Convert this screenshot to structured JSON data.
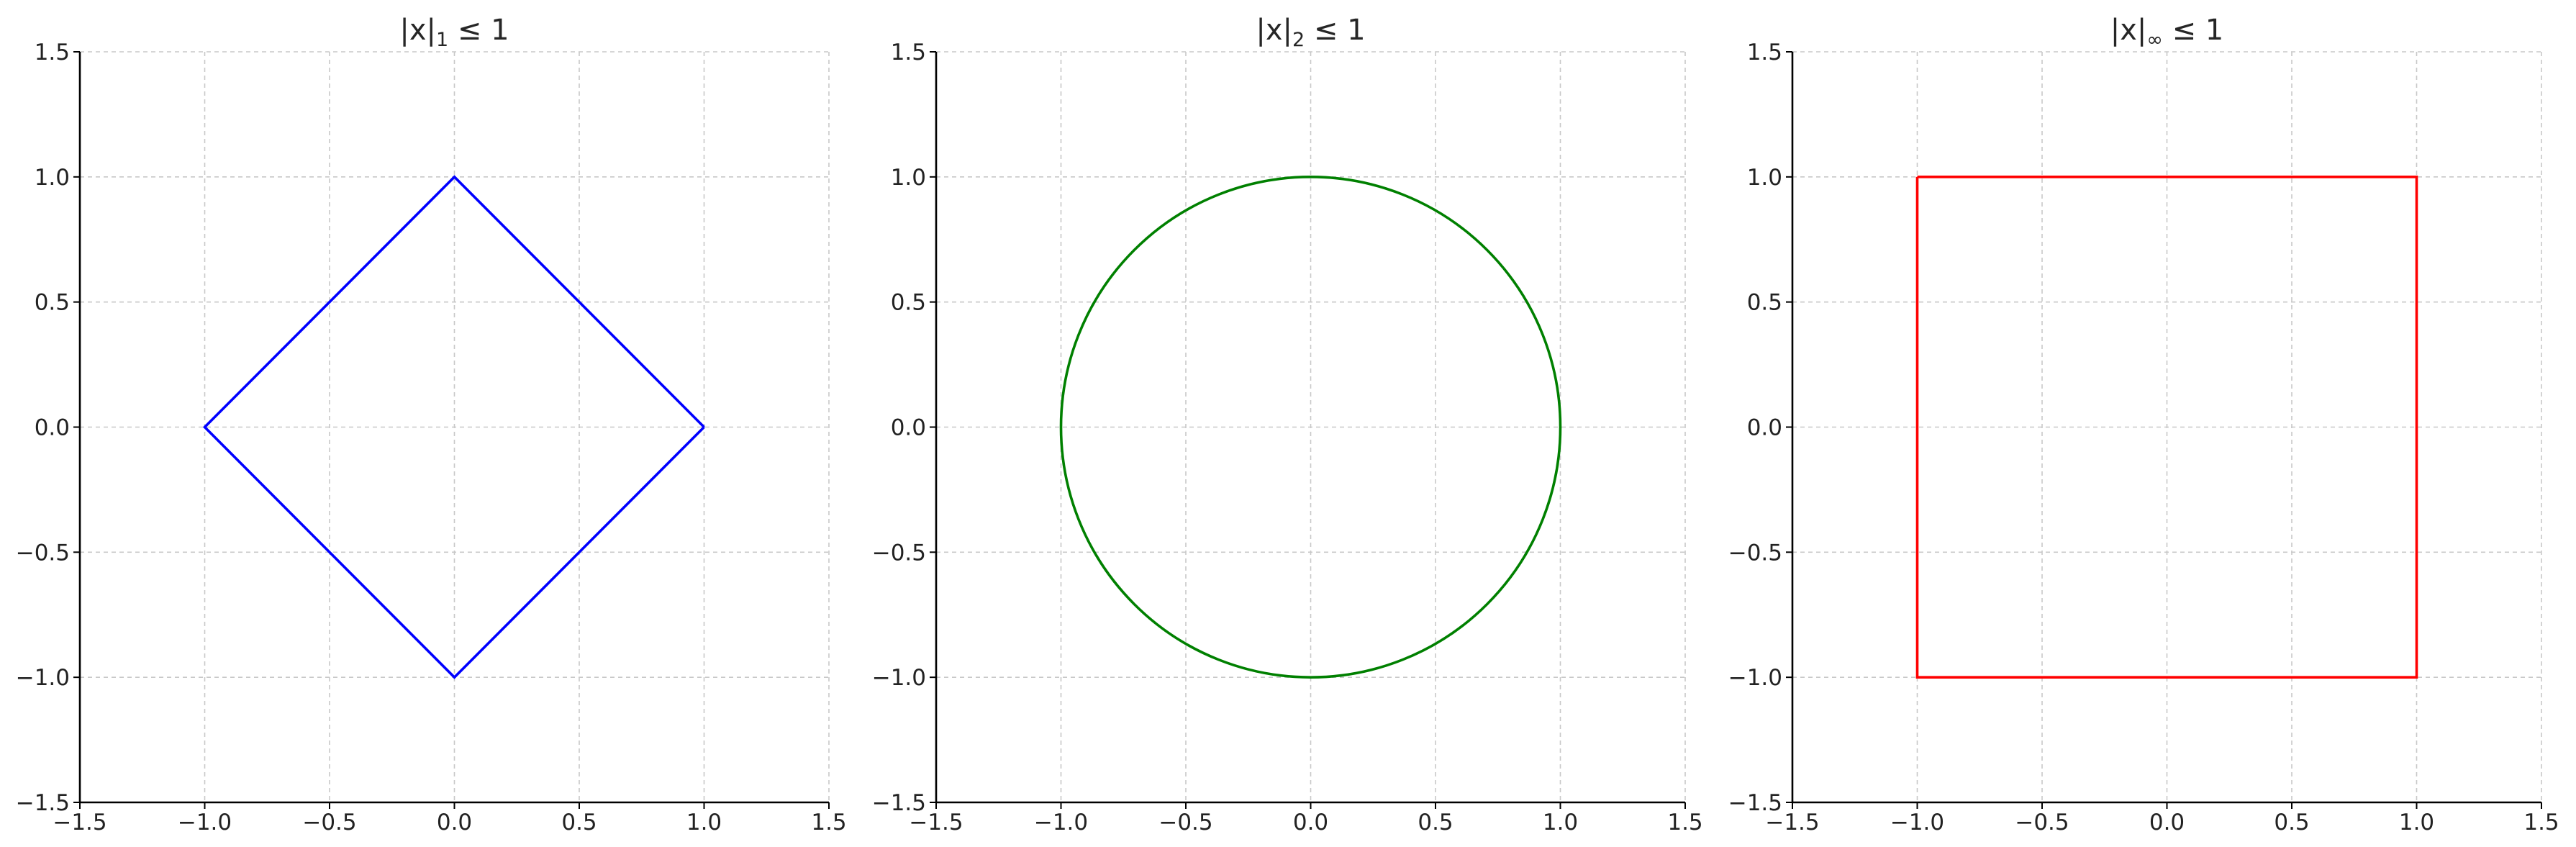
{
  "chart_data": [
    {
      "type": "line",
      "title": "|x|₁ ≤ 1",
      "title_parts": {
        "base": "|x|",
        "sub": "1",
        "rest": " ≤ 1"
      },
      "xlim": [
        -1.5,
        1.5
      ],
      "ylim": [
        -1.5,
        1.5
      ],
      "xticks": [
        "−1.5",
        "−1.0",
        "−0.5",
        "0.0",
        "0.5",
        "1.0",
        "1.5"
      ],
      "yticks": [
        "−1.5",
        "−1.0",
        "−0.5",
        "0.0",
        "0.5",
        "1.0",
        "1.5"
      ],
      "grid": true,
      "series": [
        {
          "color": "#0000ff",
          "shape": "diamond",
          "x": [
            1,
            0,
            -1,
            0,
            1
          ],
          "y": [
            0,
            1,
            0,
            -1,
            0
          ]
        }
      ]
    },
    {
      "type": "line",
      "title": "|x|₂ ≤ 1",
      "title_parts": {
        "base": "|x|",
        "sub": "2",
        "rest": " ≤ 1"
      },
      "xlim": [
        -1.5,
        1.5
      ],
      "ylim": [
        -1.5,
        1.5
      ],
      "xticks": [
        "−1.5",
        "−1.0",
        "−0.5",
        "0.0",
        "0.5",
        "1.0",
        "1.5"
      ],
      "yticks": [
        "−1.5",
        "−1.0",
        "−0.5",
        "0.0",
        "0.5",
        "1.0",
        "1.5"
      ],
      "grid": true,
      "series": [
        {
          "color": "#008000",
          "shape": "circle",
          "center": [
            0,
            0
          ],
          "radius": 1
        }
      ]
    },
    {
      "type": "line",
      "title": "|x|∞ ≤ 1",
      "title_parts": {
        "base": "|x|",
        "sub": "∞",
        "rest": " ≤ 1"
      },
      "xlim": [
        -1.5,
        1.5
      ],
      "ylim": [
        -1.5,
        1.5
      ],
      "xticks": [
        "−1.5",
        "−1.0",
        "−0.5",
        "0.0",
        "0.5",
        "1.0",
        "1.5"
      ],
      "yticks": [
        "−1.5",
        "−1.0",
        "−0.5",
        "0.0",
        "0.5",
        "1.0",
        "1.5"
      ],
      "grid": true,
      "series": [
        {
          "color": "#ff0000",
          "shape": "square",
          "x": [
            -1,
            1,
            1,
            -1,
            -1
          ],
          "y": [
            1,
            1,
            -1,
            -1,
            1
          ]
        }
      ]
    }
  ]
}
